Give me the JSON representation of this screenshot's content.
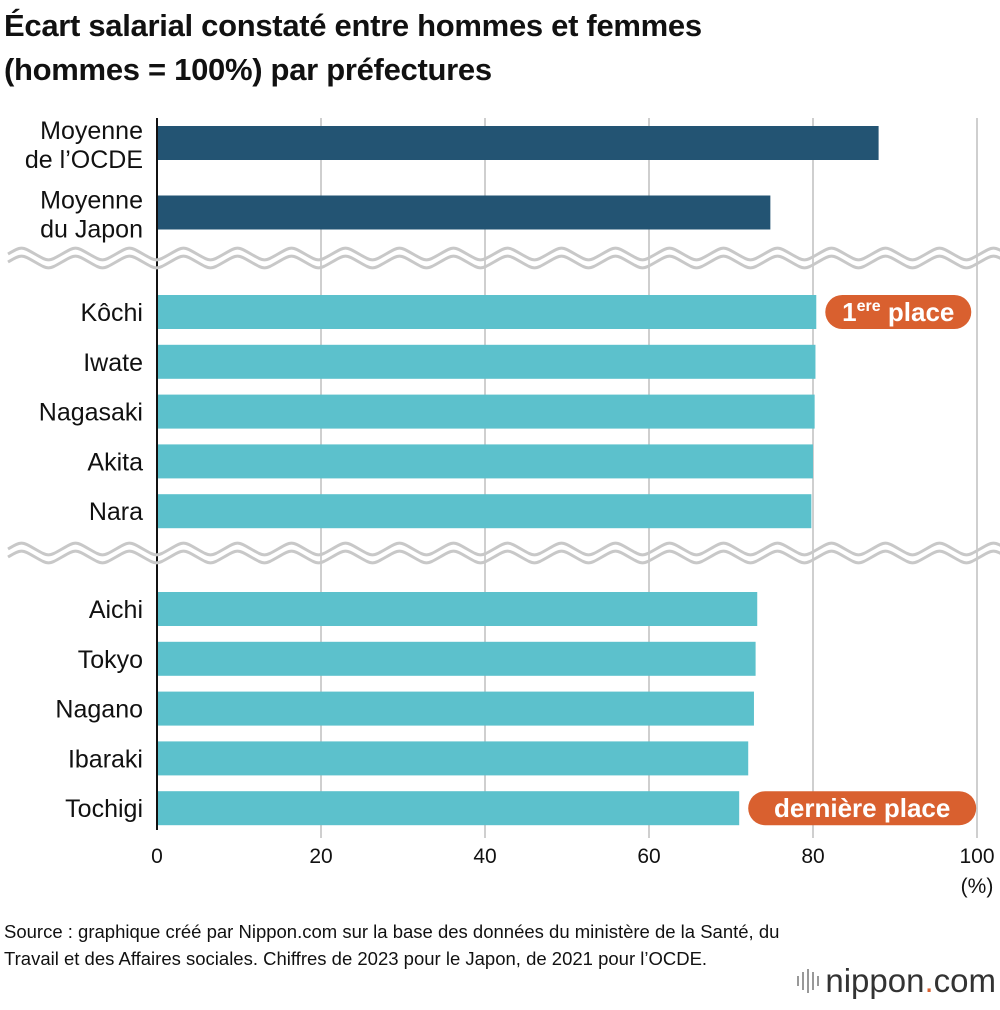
{
  "title_line1": "Écart salarial constaté entre hommes et femmes",
  "title_line2": "(hommes = 100%) par préfectures",
  "chart_data": {
    "type": "bar",
    "orientation": "horizontal",
    "groups": [
      {
        "categories": [
          [
            "Moyenne",
            "de l’OCDE"
          ],
          [
            "Moyenne",
            "du Japon"
          ]
        ],
        "values": [
          88.0,
          74.8
        ],
        "color": "#235473"
      },
      {
        "categories": [
          [
            "Kôchi"
          ],
          [
            "Iwate"
          ],
          [
            "Nagasaki"
          ],
          [
            "Akita"
          ],
          [
            "Nara"
          ]
        ],
        "values": [
          80.4,
          80.3,
          80.2,
          80.0,
          79.8
        ],
        "color": "#5cc1cc"
      },
      {
        "categories": [
          [
            "Aichi"
          ],
          [
            "Tokyo"
          ],
          [
            "Nagano"
          ],
          [
            "Ibaraki"
          ],
          [
            "Tochigi"
          ]
        ],
        "values": [
          73.2,
          73.0,
          72.8,
          72.1,
          71.0
        ],
        "color": "#5cc1cc"
      }
    ],
    "xlim": [
      0,
      100
    ],
    "xticks": [
      "0",
      "20",
      "40",
      "60",
      "80",
      "100"
    ],
    "xunit": "(%)",
    "grid": true,
    "axis_break_between_groups": true,
    "annotations": [
      {
        "category": "Kôchi",
        "text_main": "1",
        "text_sup": "ere",
        "text_rest": " place",
        "color": "#d9602f"
      },
      {
        "category": "Tochigi",
        "text": "dernière place",
        "color": "#d9602f"
      }
    ]
  },
  "source": "Source : graphique créé par Nippon.com sur la base des données du ministère de la Santé, du Travail et des Affaires sociales. Chiffres de 2023 pour le Japon, de 2021 pour l’OCDE.",
  "logo": {
    "name": "nippon",
    "dot": ".",
    "suffix": "com"
  }
}
